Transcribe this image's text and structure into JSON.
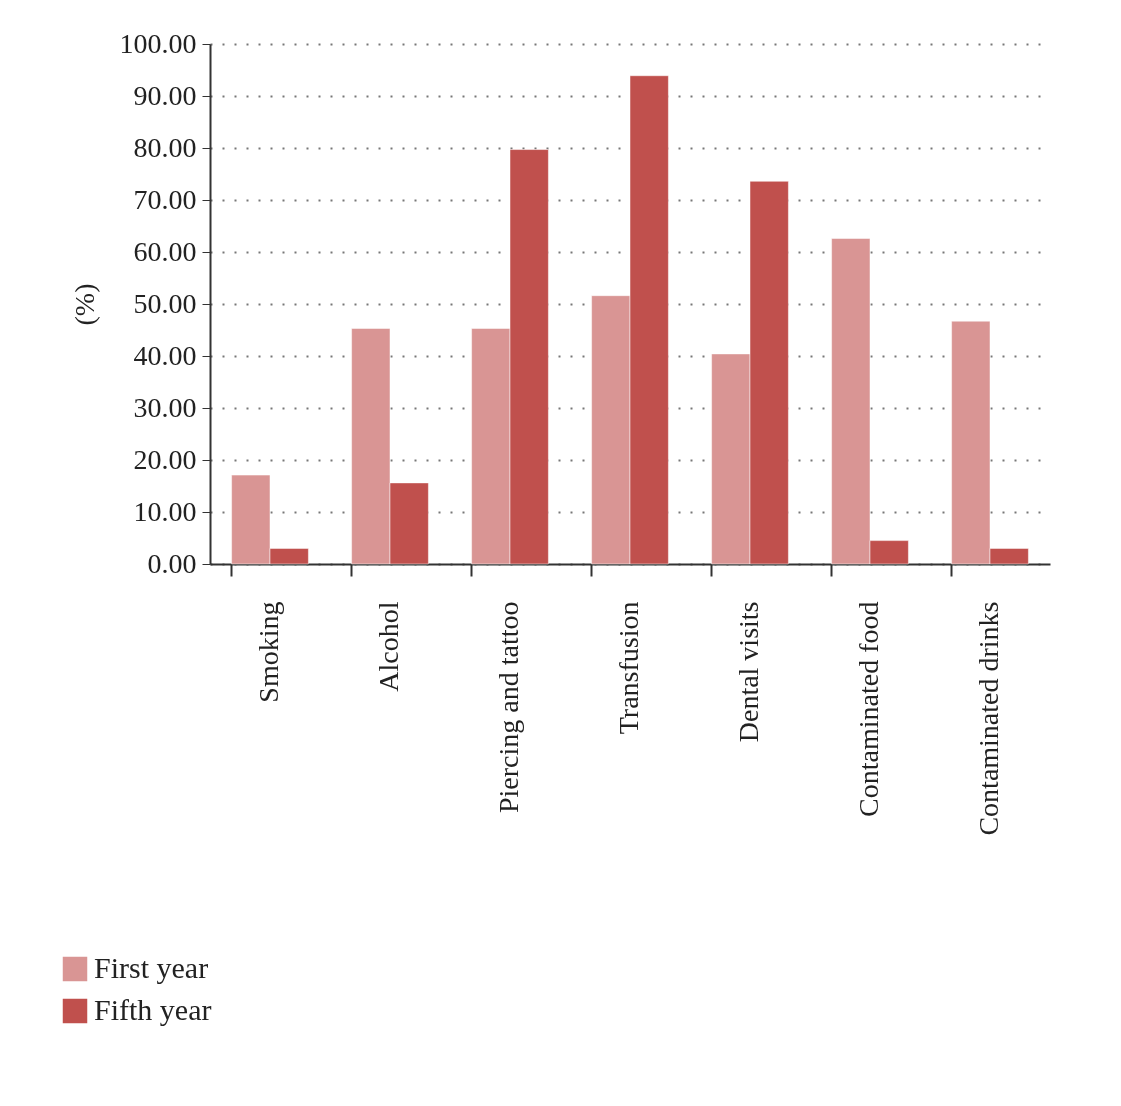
{
  "chart_data": {
    "type": "bar",
    "ylabel": "(%)",
    "categories": [
      "Smoking",
      "Alcohol",
      "Piercing and tattoo",
      "Transfusion",
      "Dental visits",
      "Contaminated food",
      "Contaminated drinks"
    ],
    "series": [
      {
        "name": "First year",
        "color": "#d99594",
        "values": [
          17.1,
          45.3,
          45.3,
          51.6,
          40.4,
          62.6,
          46.7
        ]
      },
      {
        "name": "Fifth year",
        "color": "#c0504d",
        "values": [
          3.0,
          15.6,
          79.7,
          93.9,
          73.6,
          4.5,
          3.0
        ]
      }
    ],
    "ylim": [
      0,
      100
    ],
    "yticks": [
      {
        "value": 0,
        "label": "0.00"
      },
      {
        "value": 10,
        "label": "10.00"
      },
      {
        "value": 20,
        "label": "20.00"
      },
      {
        "value": 30,
        "label": "30.00"
      },
      {
        "value": 40,
        "label": "40.00"
      },
      {
        "value": 50,
        "label": "50.00"
      },
      {
        "value": 60,
        "label": "60.00"
      },
      {
        "value": 70,
        "label": "70.00"
      },
      {
        "value": 80,
        "label": "80.00"
      },
      {
        "value": 90,
        "label": "90.00"
      },
      {
        "value": 100,
        "label": "100.00"
      }
    ],
    "grid": "y",
    "legend": "bottom"
  }
}
